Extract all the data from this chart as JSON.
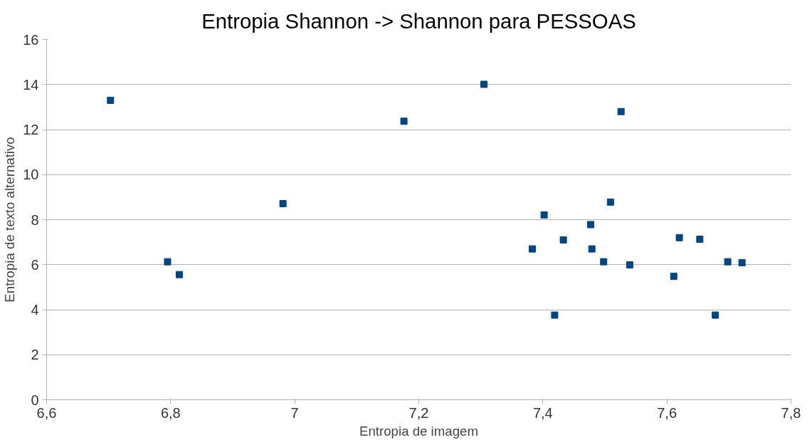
{
  "chart_data": {
    "type": "scatter",
    "title": "Entropia Shannon -> Shannon para PESSOAS",
    "xlabel": "Entropia de imagem",
    "ylabel": "Entropia de texto alternativo",
    "series": [
      {
        "color": "#004586",
        "x": [
          6.703,
          6.795,
          6.814,
          6.981,
          7.176,
          7.305,
          7.383,
          7.402,
          7.419,
          7.433,
          7.477,
          7.479,
          7.498,
          7.509,
          7.526,
          7.54,
          7.611,
          7.62,
          7.653,
          7.678,
          7.698,
          7.721
        ],
        "values": [
          13.3,
          6.13,
          5.56,
          8.71,
          12.37,
          14.01,
          6.7,
          8.21,
          3.76,
          7.1,
          7.78,
          6.7,
          6.13,
          8.78,
          12.8,
          5.99,
          5.48,
          7.2,
          7.13,
          3.76,
          6.13,
          6.09
        ]
      }
    ],
    "xlim": [
      6.6,
      7.8
    ],
    "xticks": [
      {
        "value": 6.6,
        "label": "6,6"
      },
      {
        "value": 6.8,
        "label": "6,8"
      },
      7,
      {
        "value": 7.2,
        "label": "7,2"
      },
      {
        "value": 7.4,
        "label": "7,4"
      },
      {
        "value": 7.6,
        "label": "7,6"
      },
      {
        "value": 7.8,
        "label": "7,8"
      }
    ],
    "ylim": [
      0,
      16
    ],
    "yticks": [
      0,
      2,
      4,
      6,
      8,
      10,
      12,
      14,
      16
    ],
    "grid": "y",
    "marker": "square"
  }
}
